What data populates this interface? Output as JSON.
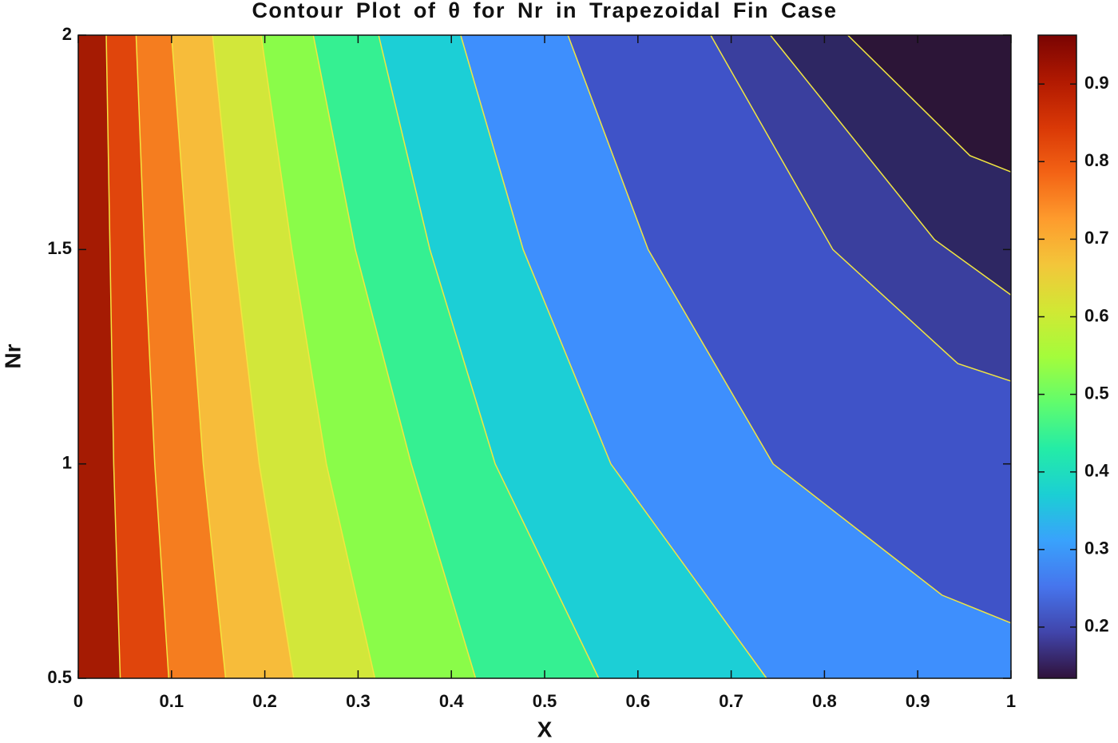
{
  "chart_data": {
    "type": "contour",
    "title": "Contour Plot  of θ for Nr in Trapezoidal Fin Case",
    "xlabel": "X",
    "ylabel": "Nr",
    "xlim": [
      0,
      1
    ],
    "ylim": [
      0.5,
      2
    ],
    "xticks": [
      0,
      0.1,
      0.2,
      0.3,
      0.4,
      0.5,
      0.6,
      0.7,
      0.8,
      0.9,
      1
    ],
    "yticks": [
      0.5,
      1,
      1.5,
      2
    ],
    "base_color": "#a51b03",
    "line_color": "#f2e640",
    "contours": [
      {
        "color": "#e0450c",
        "x": [
          0.03,
          0.034,
          0.038,
          0.045
        ],
        "y": [
          2,
          1.5,
          1,
          0.5
        ]
      },
      {
        "color": "#f57d1f",
        "x": [
          0.062,
          0.071,
          0.082,
          0.097
        ],
        "y": [
          2,
          1.5,
          1,
          0.5
        ]
      },
      {
        "color": "#f7bc3a",
        "x": [
          0.1,
          0.117,
          0.134,
          0.158
        ],
        "y": [
          2,
          1.5,
          1,
          0.5
        ]
      },
      {
        "color": "#d2e73a",
        "x": [
          0.144,
          0.167,
          0.194,
          0.231
        ],
        "y": [
          2,
          1.5,
          1,
          0.5
        ]
      },
      {
        "color": "#8afc49",
        "x": [
          0.196,
          0.229,
          0.266,
          0.318
        ],
        "y": [
          2,
          1.5,
          1,
          0.5
        ]
      },
      {
        "color": "#35f092",
        "x": [
          0.252,
          0.297,
          0.357,
          0.426
        ],
        "y": [
          2,
          1.5,
          1,
          0.5
        ]
      },
      {
        "color": "#1ccfd6",
        "x": [
          0.322,
          0.377,
          0.447,
          0.558
        ],
        "y": [
          2,
          1.5,
          1,
          0.5
        ]
      },
      {
        "color": "#3e8ffd",
        "x": [
          0.41,
          0.477,
          0.571,
          0.738
        ],
        "y": [
          2,
          1.5,
          1,
          0.5
        ]
      },
      {
        "color": "#3f53c8",
        "x": [
          0.525,
          0.611,
          0.745,
          0.926,
          1
        ],
        "y": [
          2,
          1.5,
          1,
          0.694,
          0.629
        ]
      },
      {
        "color": "#3a3f9e",
        "x": [
          0.678,
          0.809,
          0.943,
          1
        ],
        "y": [
          2,
          1.5,
          1.234,
          1.193
        ]
      },
      {
        "color": "#2e2763",
        "x": [
          0.742,
          0.918,
          1
        ],
        "y": [
          2,
          1.523,
          1.394
        ]
      },
      {
        "color": "#2c1537",
        "x": [
          0.825,
          0.956,
          1
        ],
        "y": [
          2,
          1.719,
          1.681
        ]
      }
    ],
    "colorbar": {
      "clim": [
        0.134,
        0.963
      ],
      "ticks": [
        0.2,
        0.3,
        0.4,
        0.5,
        0.6,
        0.7,
        0.8,
        0.9
      ],
      "colormap": [
        "#30123b",
        "#4145ab",
        "#4675ed",
        "#39a2fc",
        "#1bcfd4",
        "#24eca6",
        "#61fc6c",
        "#a4fc3b",
        "#d1e834",
        "#f3c63a",
        "#fe9b2d",
        "#f36315",
        "#d93806",
        "#b11901",
        "#7a0402"
      ]
    }
  }
}
